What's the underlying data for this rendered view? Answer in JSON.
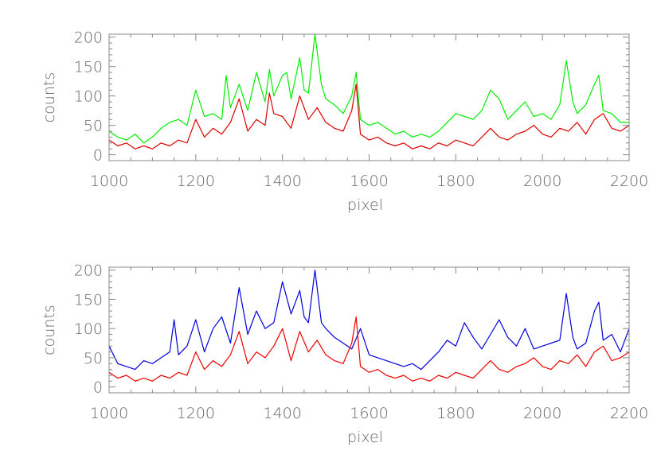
{
  "chart_data": [
    {
      "type": "line",
      "xlabel": "pixel",
      "ylabel": "counts",
      "xlim": [
        1000,
        2200
      ],
      "ylim": [
        -10,
        205
      ],
      "x_ticks": [
        "1000",
        "1200",
        "1400",
        "1600",
        "1800",
        "2000",
        "2200"
      ],
      "y_ticks": [
        "0",
        "50",
        "100",
        "150",
        "200"
      ],
      "grid": false,
      "series": [
        {
          "color": "#00ee00",
          "x": [
            1000,
            1020,
            1040,
            1060,
            1080,
            1100,
            1120,
            1140,
            1160,
            1180,
            1200,
            1220,
            1240,
            1260,
            1270,
            1280,
            1300,
            1320,
            1340,
            1360,
            1370,
            1380,
            1400,
            1410,
            1420,
            1440,
            1450,
            1460,
            1475,
            1490,
            1500,
            1520,
            1540,
            1560,
            1570,
            1580,
            1600,
            1620,
            1640,
            1660,
            1680,
            1700,
            1720,
            1740,
            1760,
            1780,
            1800,
            1820,
            1840,
            1860,
            1880,
            1900,
            1920,
            1940,
            1960,
            1980,
            2000,
            2020,
            2040,
            2055,
            2070,
            2080,
            2100,
            2120,
            2130,
            2140,
            2160,
            2180,
            2200
          ],
          "values": [
            40,
            30,
            25,
            35,
            20,
            30,
            45,
            55,
            60,
            50,
            110,
            65,
            70,
            60,
            135,
            80,
            120,
            75,
            140,
            90,
            145,
            100,
            135,
            140,
            95,
            165,
            110,
            105,
            205,
            120,
            95,
            85,
            70,
            100,
            140,
            60,
            50,
            55,
            45,
            35,
            40,
            30,
            35,
            30,
            40,
            55,
            70,
            65,
            60,
            75,
            110,
            95,
            60,
            75,
            90,
            65,
            70,
            60,
            85,
            160,
            90,
            70,
            85,
            120,
            135,
            75,
            70,
            55,
            55
          ]
        },
        {
          "color": "#dd0000",
          "x": [
            1000,
            1020,
            1040,
            1060,
            1080,
            1100,
            1120,
            1140,
            1160,
            1180,
            1200,
            1220,
            1240,
            1260,
            1280,
            1300,
            1320,
            1340,
            1360,
            1370,
            1380,
            1400,
            1420,
            1440,
            1460,
            1480,
            1500,
            1520,
            1540,
            1560,
            1570,
            1580,
            1600,
            1620,
            1640,
            1660,
            1680,
            1700,
            1720,
            1740,
            1760,
            1780,
            1800,
            1820,
            1840,
            1860,
            1880,
            1900,
            1920,
            1940,
            1960,
            1980,
            2000,
            2020,
            2040,
            2060,
            2080,
            2100,
            2120,
            2140,
            2160,
            2180,
            2200
          ],
          "values": [
            25,
            15,
            20,
            10,
            15,
            10,
            20,
            15,
            25,
            20,
            60,
            30,
            45,
            35,
            55,
            95,
            40,
            60,
            50,
            105,
            70,
            65,
            45,
            100,
            60,
            80,
            55,
            45,
            40,
            75,
            120,
            35,
            25,
            30,
            20,
            15,
            20,
            10,
            15,
            10,
            20,
            15,
            25,
            20,
            15,
            30,
            45,
            30,
            25,
            35,
            40,
            50,
            35,
            30,
            45,
            40,
            55,
            35,
            60,
            70,
            45,
            40,
            50
          ]
        }
      ]
    },
    {
      "type": "line",
      "xlabel": "pixel",
      "ylabel": "counts",
      "xlim": [
        1000,
        2200
      ],
      "ylim": [
        -10,
        205
      ],
      "x_ticks": [
        "1000",
        "1200",
        "1400",
        "1600",
        "1800",
        "2000",
        "2200"
      ],
      "y_ticks": [
        "0",
        "50",
        "100",
        "150",
        "200"
      ],
      "grid": false,
      "series": [
        {
          "color": "#0000dd",
          "x": [
            1000,
            1020,
            1040,
            1060,
            1080,
            1100,
            1120,
            1140,
            1150,
            1160,
            1180,
            1200,
            1220,
            1240,
            1260,
            1280,
            1300,
            1320,
            1340,
            1360,
            1380,
            1400,
            1420,
            1440,
            1450,
            1460,
            1475,
            1490,
            1500,
            1520,
            1540,
            1560,
            1580,
            1600,
            1620,
            1640,
            1660,
            1680,
            1700,
            1720,
            1740,
            1760,
            1780,
            1800,
            1820,
            1840,
            1860,
            1880,
            1900,
            1920,
            1940,
            1960,
            1980,
            2000,
            2020,
            2040,
            2055,
            2070,
            2080,
            2100,
            2120,
            2130,
            2140,
            2160,
            2180,
            2200
          ],
          "values": [
            70,
            40,
            35,
            30,
            45,
            40,
            50,
            60,
            115,
            55,
            70,
            115,
            60,
            100,
            120,
            75,
            170,
            90,
            130,
            100,
            110,
            180,
            125,
            165,
            120,
            110,
            200,
            110,
            100,
            85,
            75,
            65,
            100,
            55,
            50,
            45,
            40,
            35,
            40,
            30,
            45,
            60,
            80,
            70,
            110,
            85,
            65,
            90,
            115,
            85,
            70,
            100,
            65,
            70,
            75,
            80,
            160,
            85,
            65,
            75,
            130,
            145,
            80,
            90,
            60,
            100
          ]
        },
        {
          "color": "#ee0000",
          "x": [
            1000,
            1020,
            1040,
            1060,
            1080,
            1100,
            1120,
            1140,
            1160,
            1180,
            1200,
            1220,
            1240,
            1260,
            1280,
            1300,
            1320,
            1340,
            1360,
            1380,
            1400,
            1420,
            1440,
            1460,
            1480,
            1500,
            1520,
            1540,
            1560,
            1570,
            1580,
            1600,
            1620,
            1640,
            1660,
            1680,
            1700,
            1720,
            1740,
            1760,
            1780,
            1800,
            1820,
            1840,
            1860,
            1880,
            1900,
            1920,
            1940,
            1960,
            1980,
            2000,
            2020,
            2040,
            2060,
            2080,
            2100,
            2120,
            2140,
            2160,
            2180,
            2200
          ],
          "values": [
            25,
            15,
            20,
            10,
            15,
            10,
            20,
            15,
            25,
            20,
            60,
            30,
            45,
            35,
            55,
            95,
            40,
            60,
            50,
            70,
            100,
            45,
            95,
            60,
            80,
            55,
            45,
            40,
            75,
            120,
            35,
            25,
            30,
            20,
            15,
            20,
            10,
            15,
            10,
            20,
            15,
            25,
            20,
            15,
            30,
            45,
            30,
            25,
            35,
            40,
            50,
            35,
            30,
            45,
            40,
            55,
            35,
            60,
            70,
            45,
            50,
            60
          ]
        }
      ]
    }
  ]
}
